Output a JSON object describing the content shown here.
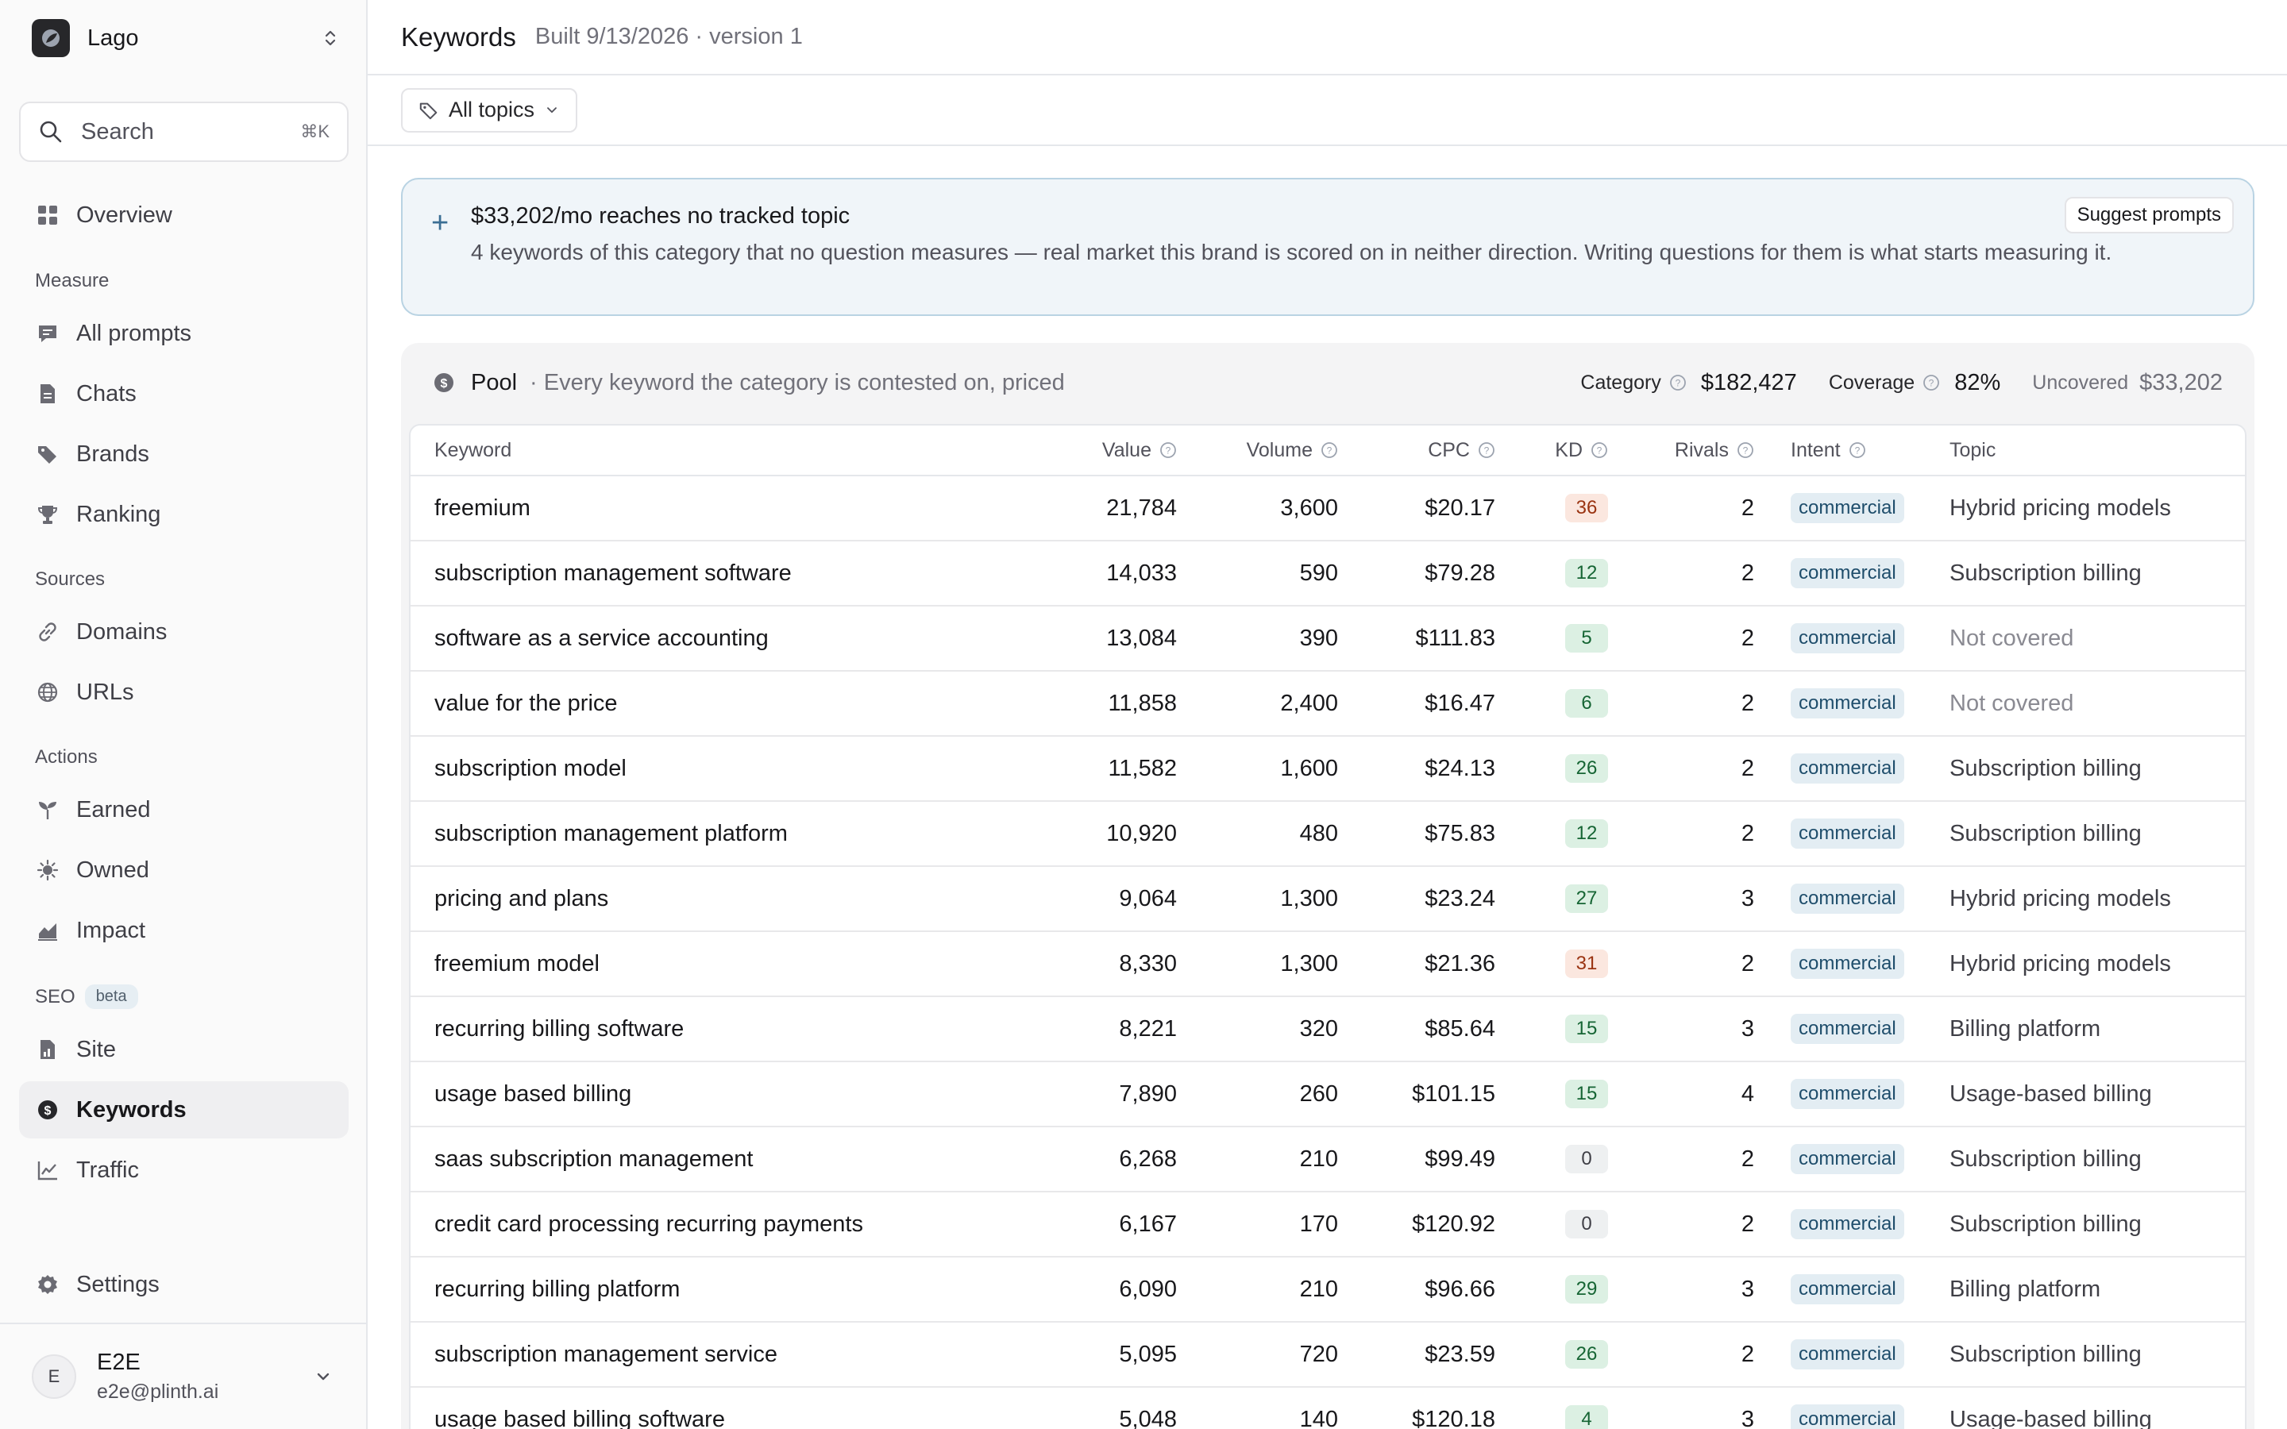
{
  "workspace": {
    "name": "Lago"
  },
  "search": {
    "label": "Search",
    "shortcut": "⌘K"
  },
  "nav": {
    "overview": "Overview",
    "measure_label": "Measure",
    "all_prompts": "All prompts",
    "chats": "Chats",
    "brands": "Brands",
    "ranking": "Ranking",
    "sources_label": "Sources",
    "domains": "Domains",
    "urls": "URLs",
    "actions_label": "Actions",
    "earned": "Earned",
    "owned": "Owned",
    "impact": "Impact",
    "seo_label": "SEO",
    "seo_badge": "beta",
    "site": "Site",
    "keywords": "Keywords",
    "traffic": "Traffic",
    "settings": "Settings"
  },
  "user": {
    "initial": "E",
    "name": "E2E",
    "email": "e2e@plinth.ai"
  },
  "header": {
    "title": "Keywords",
    "subtitle": "Built 9/13/2026 · version 1"
  },
  "filter": {
    "topics": "All topics"
  },
  "banner": {
    "title": "$33,202/mo reaches no tracked topic",
    "body": "4 keywords of this category that no question measures — real market this brand is scored on in neither direction. Writing questions for them is what starts measuring it.",
    "button": "Suggest prompts"
  },
  "pool": {
    "title": "Pool",
    "description": "· Every keyword the category is contested on, priced",
    "category_label": "Category",
    "category_value": "$182,427",
    "coverage_label": "Coverage",
    "coverage_value": "82%",
    "uncovered_label": "Uncovered",
    "uncovered_value": "$33,202"
  },
  "table": {
    "columns": {
      "keyword": "Keyword",
      "value": "Value",
      "volume": "Volume",
      "cpc": "CPC",
      "kd": "KD",
      "rivals": "Rivals",
      "intent": "Intent",
      "topic": "Topic"
    },
    "rows": [
      {
        "keyword": "freemium",
        "value": "21,784",
        "volume": "3,600",
        "cpc": "$20.17",
        "kd": "36",
        "kd_level": "hard",
        "rivals": "2",
        "intent": "commercial",
        "topic": "Hybrid pricing models",
        "covered": true
      },
      {
        "keyword": "subscription management software",
        "value": "14,033",
        "volume": "590",
        "cpc": "$79.28",
        "kd": "12",
        "kd_level": "easy",
        "rivals": "2",
        "intent": "commercial",
        "topic": "Subscription billing",
        "covered": true
      },
      {
        "keyword": "software as a service accounting",
        "value": "13,084",
        "volume": "390",
        "cpc": "$111.83",
        "kd": "5",
        "kd_level": "easy",
        "rivals": "2",
        "intent": "commercial",
        "topic": "Not covered",
        "covered": false
      },
      {
        "keyword": "value for the price",
        "value": "11,858",
        "volume": "2,400",
        "cpc": "$16.47",
        "kd": "6",
        "kd_level": "easy",
        "rivals": "2",
        "intent": "commercial",
        "topic": "Not covered",
        "covered": false
      },
      {
        "keyword": "subscription model",
        "value": "11,582",
        "volume": "1,600",
        "cpc": "$24.13",
        "kd": "26",
        "kd_level": "easy",
        "rivals": "2",
        "intent": "commercial",
        "topic": "Subscription billing",
        "covered": true
      },
      {
        "keyword": "subscription management platform",
        "value": "10,920",
        "volume": "480",
        "cpc": "$75.83",
        "kd": "12",
        "kd_level": "easy",
        "rivals": "2",
        "intent": "commercial",
        "topic": "Subscription billing",
        "covered": true
      },
      {
        "keyword": "pricing and plans",
        "value": "9,064",
        "volume": "1,300",
        "cpc": "$23.24",
        "kd": "27",
        "kd_level": "easy",
        "rivals": "3",
        "intent": "commercial",
        "topic": "Hybrid pricing models",
        "covered": true
      },
      {
        "keyword": "freemium model",
        "value": "8,330",
        "volume": "1,300",
        "cpc": "$21.36",
        "kd": "31",
        "kd_level": "hard",
        "rivals": "2",
        "intent": "commercial",
        "topic": "Hybrid pricing models",
        "covered": true
      },
      {
        "keyword": "recurring billing software",
        "value": "8,221",
        "volume": "320",
        "cpc": "$85.64",
        "kd": "15",
        "kd_level": "easy",
        "rivals": "3",
        "intent": "commercial",
        "topic": "Billing platform",
        "covered": true
      },
      {
        "keyword": "usage based billing",
        "value": "7,890",
        "volume": "260",
        "cpc": "$101.15",
        "kd": "15",
        "kd_level": "easy",
        "rivals": "4",
        "intent": "commercial",
        "topic": "Usage-based billing",
        "covered": true
      },
      {
        "keyword": "saas subscription management",
        "value": "6,268",
        "volume": "210",
        "cpc": "$99.49",
        "kd": "0",
        "kd_level": "zero",
        "rivals": "2",
        "intent": "commercial",
        "topic": "Subscription billing",
        "covered": true
      },
      {
        "keyword": "credit card processing recurring payments",
        "value": "6,167",
        "volume": "170",
        "cpc": "$120.92",
        "kd": "0",
        "kd_level": "zero",
        "rivals": "2",
        "intent": "commercial",
        "topic": "Subscription billing",
        "covered": true
      },
      {
        "keyword": "recurring billing platform",
        "value": "6,090",
        "volume": "210",
        "cpc": "$96.66",
        "kd": "29",
        "kd_level": "easy",
        "rivals": "3",
        "intent": "commercial",
        "topic": "Billing platform",
        "covered": true
      },
      {
        "keyword": "subscription management service",
        "value": "5,095",
        "volume": "720",
        "cpc": "$23.59",
        "kd": "26",
        "kd_level": "easy",
        "rivals": "2",
        "intent": "commercial",
        "topic": "Subscription billing",
        "covered": true
      },
      {
        "keyword": "usage based billing software",
        "value": "5,048",
        "volume": "140",
        "cpc": "$120.18",
        "kd": "4",
        "kd_level": "easy",
        "rivals": "3",
        "intent": "commercial",
        "topic": "Usage-based billing",
        "covered": true
      }
    ]
  }
}
